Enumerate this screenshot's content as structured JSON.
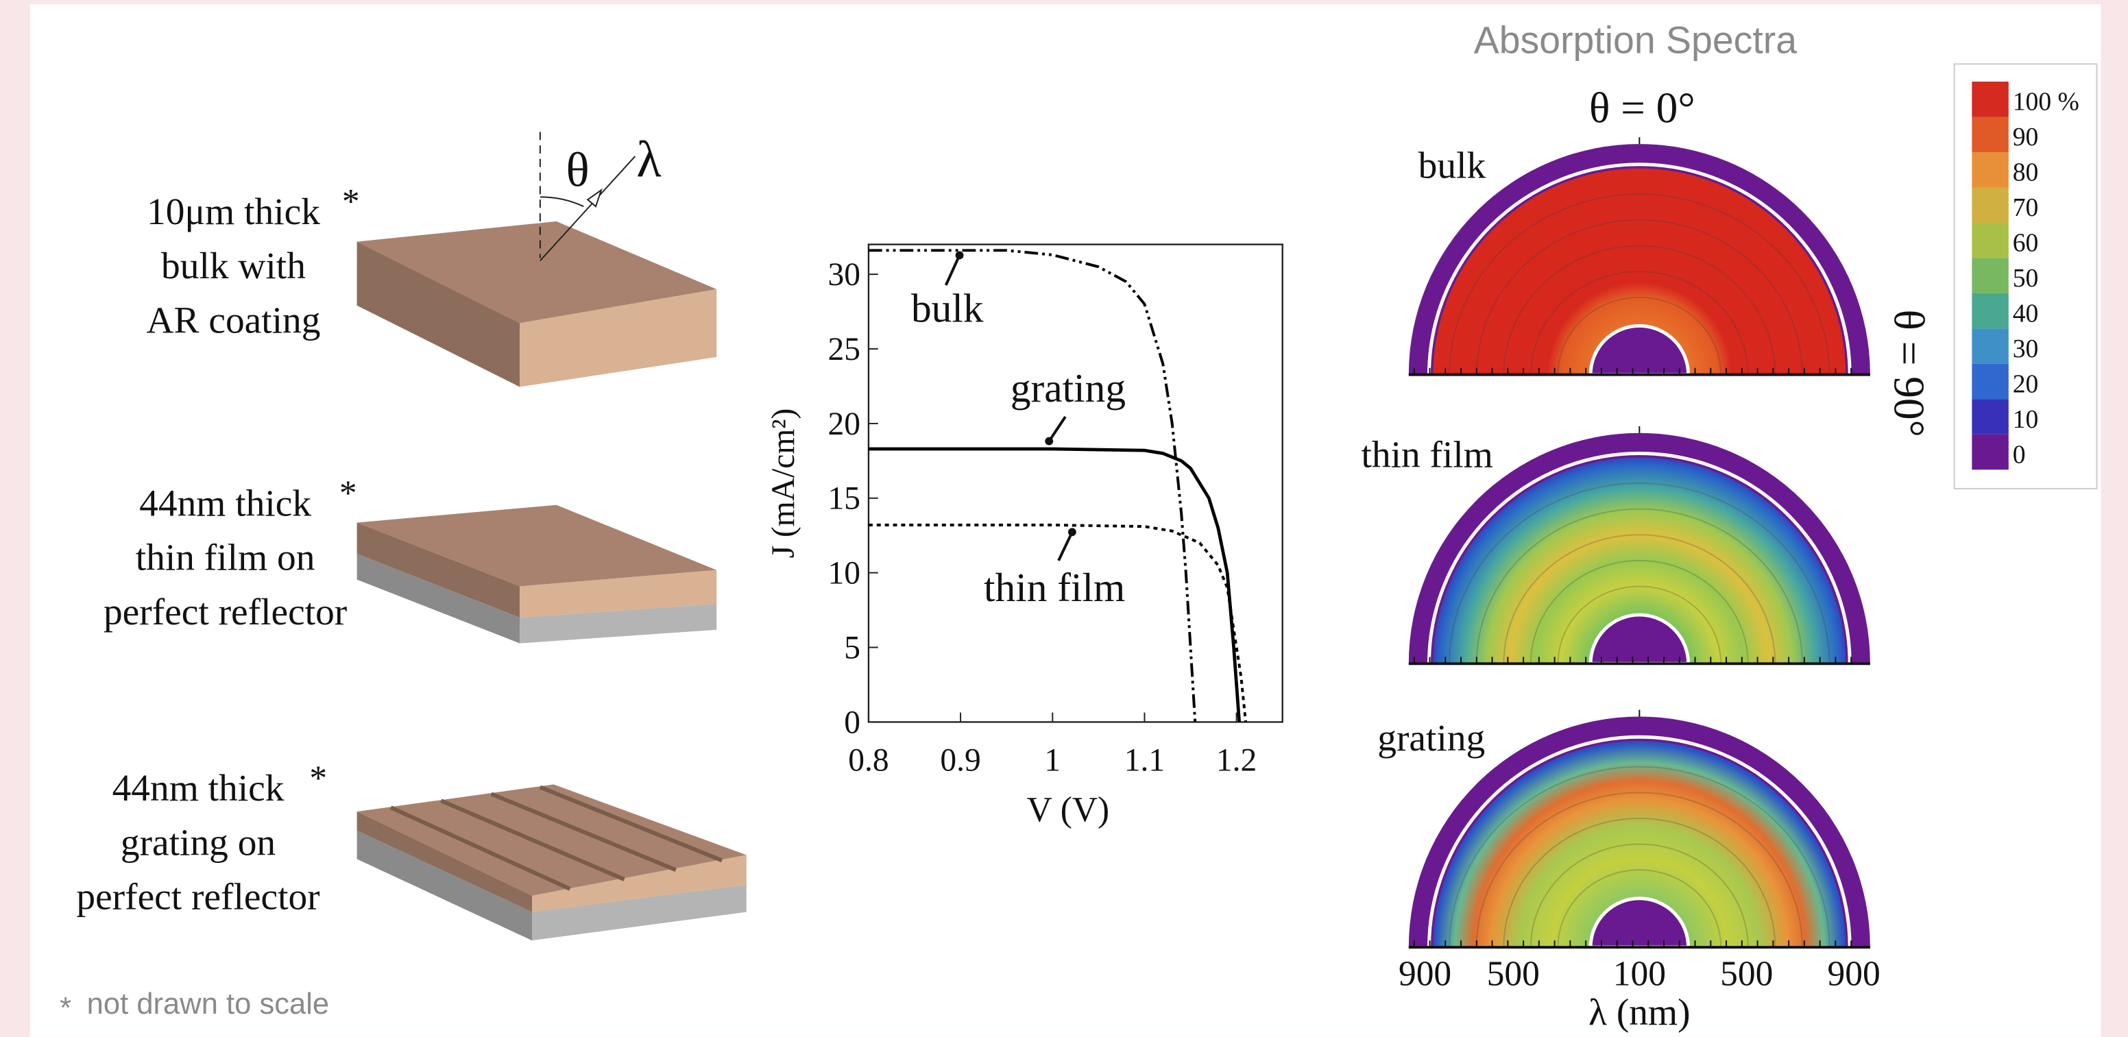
{
  "chart_data": {
    "type": "line",
    "xlabel": "V (V)",
    "ylabel": "J (mA/cm²)",
    "xlim": [
      0.8,
      1.25
    ],
    "xticks": [
      0.8,
      0.9,
      1,
      1.1,
      1.2
    ],
    "ylim": [
      0,
      32
    ],
    "yticks": [
      0,
      5,
      10,
      15,
      20,
      25,
      30
    ],
    "series": [
      {
        "name": "bulk",
        "color": "#000000",
        "style": "dash-dot-dot",
        "x": [
          0.8,
          0.95,
          1.0,
          1.05,
          1.08,
          1.1,
          1.12,
          1.13,
          1.14,
          1.145,
          1.15,
          1.155
        ],
        "values": [
          31.6,
          31.6,
          31.3,
          30.5,
          29.5,
          28,
          24,
          20,
          14,
          10,
          5,
          0
        ]
      },
      {
        "name": "grating",
        "color": "#000000",
        "style": "solid",
        "x": [
          0.8,
          1.0,
          1.1,
          1.12,
          1.14,
          1.15,
          1.17,
          1.18,
          1.19,
          1.197,
          1.203
        ],
        "values": [
          18.3,
          18.3,
          18.2,
          18.0,
          17.5,
          17.0,
          15,
          13,
          10,
          5,
          0
        ]
      },
      {
        "name": "thin film",
        "color": "#000000",
        "style": "dotted",
        "x": [
          0.8,
          1.0,
          1.1,
          1.13,
          1.16,
          1.18,
          1.19,
          1.2,
          1.205,
          1.21
        ],
        "values": [
          13.2,
          13.2,
          13.1,
          12.8,
          12,
          10.5,
          9,
          5,
          3,
          0
        ]
      }
    ]
  },
  "diagram": {
    "samples": [
      {
        "lines": [
          "10μm thick",
          "bulk with",
          "AR coating"
        ]
      },
      {
        "lines": [
          "44nm thick",
          "thin film on",
          "perfect reflector"
        ]
      },
      {
        "lines": [
          "44nm thick",
          "grating on",
          "perfect reflector"
        ]
      }
    ],
    "asterisk": "*",
    "angle": "θ",
    "wavelength": "λ",
    "footnote": "not drawn to scale"
  },
  "spectra": {
    "title": "Absorption Spectra",
    "top_label": "θ = 0°",
    "side_label": "θ = 90°",
    "panels": [
      "bulk",
      "thin film",
      "grating"
    ],
    "axis_ticks": [
      900,
      500,
      100,
      500,
      900
    ],
    "axis_label": "λ (nm)",
    "colorbar": {
      "ticks": [
        {
          "value": 100,
          "label": "100 %"
        },
        90,
        80,
        70,
        60,
        50,
        40,
        30,
        20,
        10,
        0
      ],
      "colors": [
        "#d42a20",
        "#e05a28",
        "#e89038",
        "#d0b040",
        "#a8c048",
        "#78b860",
        "#48a890",
        "#4090c8",
        "#3068d0",
        "#3830b8",
        "#6a1a90"
      ]
    }
  }
}
